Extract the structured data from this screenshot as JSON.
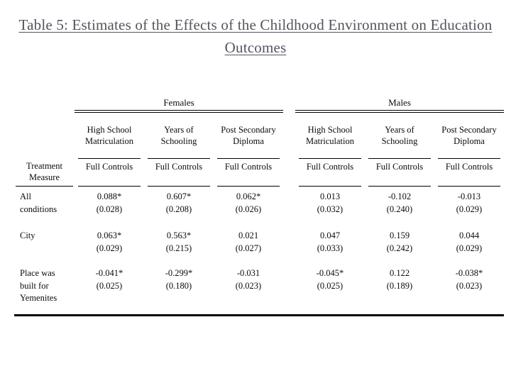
{
  "title": "Table 5: Estimates of the Effects of the Childhood Environment on Education Outcomes",
  "table": {
    "corner_header": "Treatment Measure",
    "panels": [
      {
        "label": "Females",
        "columns": [
          {
            "outcome": "High School Matriculation",
            "spec": "Full Controls"
          },
          {
            "outcome": "Years of Schooling",
            "spec": "Full Controls"
          },
          {
            "outcome": "Post Secondary Diploma",
            "spec": "Full Controls"
          }
        ]
      },
      {
        "label": "Males",
        "columns": [
          {
            "outcome": "High School Matriculation",
            "spec": "Full Controls"
          },
          {
            "outcome": "Years of Schooling",
            "spec": "Full Controls"
          },
          {
            "outcome": "Post Secondary Diploma",
            "spec": "Full Controls"
          }
        ]
      }
    ],
    "rows": [
      {
        "label": "All conditions",
        "cells": [
          {
            "estimate": "0.088*",
            "se": "(0.028)"
          },
          {
            "estimate": "0.607*",
            "se": "(0.208)"
          },
          {
            "estimate": "0.062*",
            "se": "(0.026)"
          },
          {
            "estimate": "0.013",
            "se": "(0.032)"
          },
          {
            "estimate": "-0.102",
            "se": "(0.240)"
          },
          {
            "estimate": "-0.013",
            "se": "(0.029)"
          }
        ]
      },
      {
        "label": "City",
        "cells": [
          {
            "estimate": "0.063*",
            "se": "(0.029)"
          },
          {
            "estimate": "0.563*",
            "se": "(0.215)"
          },
          {
            "estimate": "0.021",
            "se": "(0.027)"
          },
          {
            "estimate": "0.047",
            "se": "(0.033)"
          },
          {
            "estimate": "0.159",
            "se": "(0.242)"
          },
          {
            "estimate": "0.044",
            "se": "(0.029)"
          }
        ]
      },
      {
        "label": "Place was built for Yemenites",
        "cells": [
          {
            "estimate": "-0.041*",
            "se": "(0.025)"
          },
          {
            "estimate": "-0.299*",
            "se": "(0.180)"
          },
          {
            "estimate": "-0.031",
            "se": "(0.023)"
          },
          {
            "estimate": "-0.045*",
            "se": "(0.025)"
          },
          {
            "estimate": "0.122",
            "se": "(0.189)"
          },
          {
            "estimate": "-0.038*",
            "se": "(0.023)"
          }
        ]
      }
    ]
  },
  "colors": {
    "title_text": "#54545f",
    "table_text": "#0b0b0b",
    "rules": "#000000"
  }
}
